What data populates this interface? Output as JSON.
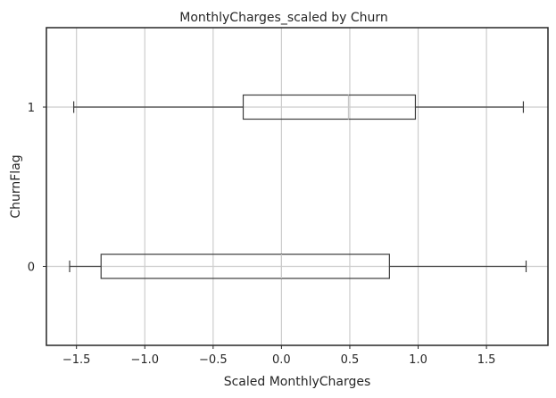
{
  "chart_data": {
    "type": "boxplot",
    "orientation": "horizontal",
    "title": "MonthlyCharges_scaled by Churn",
    "xlabel": "Scaled MonthlyCharges",
    "ylabel": "ChurnFlag",
    "xlim": [
      -1.72,
      1.95
    ],
    "x_ticks": [
      -1.5,
      -1.0,
      -0.5,
      0.0,
      0.5,
      1.0,
      1.5
    ],
    "x_tick_labels": [
      "−1.5",
      "−1.0",
      "−0.5",
      "0.0",
      "0.5",
      "1.0",
      "1.5"
    ],
    "categories": [
      "0",
      "1"
    ],
    "grid": true,
    "boxes": [
      {
        "category": "0",
        "whisker_low": -1.55,
        "q1": -1.32,
        "median": 0.0,
        "q3": 0.79,
        "whisker_high": 1.79
      },
      {
        "category": "1",
        "whisker_low": -1.52,
        "q1": -0.28,
        "median": 0.49,
        "q3": 0.98,
        "whisker_high": 1.77
      }
    ],
    "colors": {
      "box_edge": "#3d3d3d",
      "median": "#c9c9c9",
      "grid": "#cccccc",
      "frame": "#262626"
    }
  }
}
